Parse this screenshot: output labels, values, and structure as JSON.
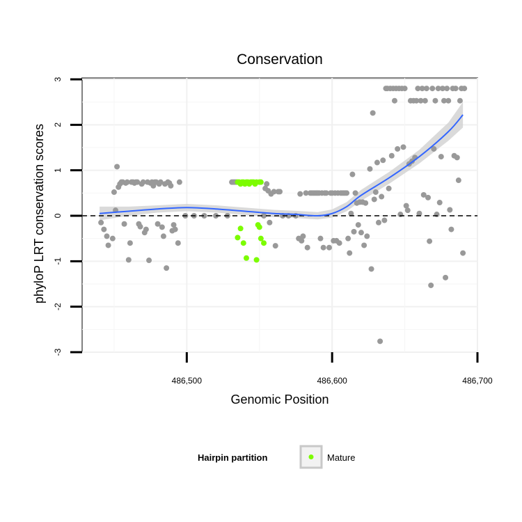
{
  "chart_data": {
    "type": "scatter",
    "title": "Conservation",
    "xlabel": "Genomic Position",
    "ylabel": "phyloP LRT conservation scores",
    "xlim": [
      486428,
      486700
    ],
    "ylim": [
      -3,
      3
    ],
    "x_ticks": [
      486500,
      486600,
      486700
    ],
    "x_tick_labels": [
      "486,500",
      "486,600",
      "486,700"
    ],
    "y_ticks": [
      -3,
      -2,
      -1,
      0,
      1,
      2,
      3
    ],
    "y_tick_labels": [
      "-3",
      "-2",
      "-1",
      "0",
      "1",
      "2",
      "3"
    ],
    "reference_line": {
      "y": 0,
      "style": "dashed"
    },
    "grid": true,
    "legend": {
      "title": "Hairpin partition",
      "entries": [
        {
          "label": "Mature",
          "color": "#7cfc00"
        }
      ],
      "position": "bottom"
    },
    "colors": {
      "other": "#999999",
      "mature": "#7cfc00",
      "smooth": "#3366ff",
      "band": "#d3d3d3"
    },
    "series": [
      {
        "name": "Other",
        "points": [
          [
            486441,
            -0.15
          ],
          [
            486443,
            -0.3
          ],
          [
            486445,
            -0.45
          ],
          [
            486446,
            -0.65
          ],
          [
            486449,
            -0.5
          ],
          [
            486450,
            0.52
          ],
          [
            486451,
            0.12
          ],
          [
            486452,
            1.08
          ],
          [
            486453,
            0.63
          ],
          [
            486454,
            0.7
          ],
          [
            486455,
            0.74
          ],
          [
            486456,
            0.74
          ],
          [
            486457,
            -0.18
          ],
          [
            486458,
            0.72
          ],
          [
            486459,
            0.74
          ],
          [
            486460,
            -0.97
          ],
          [
            486461,
            -0.6
          ],
          [
            486462,
            0.74
          ],
          [
            486463,
            0.74
          ],
          [
            486464,
            0.72
          ],
          [
            486465,
            0.74
          ],
          [
            486466,
            0.74
          ],
          [
            486467,
            -0.18
          ],
          [
            486468,
            -0.24
          ],
          [
            486469,
            0.7
          ],
          [
            486470,
            0.74
          ],
          [
            486471,
            -0.37
          ],
          [
            486472,
            -0.3
          ],
          [
            486473,
            0.74
          ],
          [
            486474,
            -0.98
          ],
          [
            486475,
            0.72
          ],
          [
            486476,
            0.74
          ],
          [
            486477,
            0.66
          ],
          [
            486478,
            0.74
          ],
          [
            486479,
            0.74
          ],
          [
            486480,
            -0.18
          ],
          [
            486481,
            0.7
          ],
          [
            486482,
            0.74
          ],
          [
            486483,
            -0.25
          ],
          [
            486484,
            -0.45
          ],
          [
            486485,
            0.7
          ],
          [
            486486,
            -1.15
          ],
          [
            486487,
            0.74
          ],
          [
            486488,
            0.72
          ],
          [
            486489,
            0.66
          ],
          [
            486490,
            -0.33
          ],
          [
            486491,
            -0.2
          ],
          [
            486492,
            -0.3
          ],
          [
            486494,
            -0.6
          ],
          [
            486495,
            0.74
          ],
          [
            486499,
            0.0
          ],
          [
            486505,
            0.0
          ],
          [
            486512,
            0.0
          ],
          [
            486520,
            0.0
          ],
          [
            486528,
            0.0
          ],
          [
            486531,
            0.74
          ],
          [
            486532,
            0.74
          ],
          [
            486533,
            0.74
          ],
          [
            486534,
            0.74
          ],
          [
            486553,
            0.0
          ],
          [
            486554,
            0.6
          ],
          [
            486555,
            0.7
          ],
          [
            486556,
            0.55
          ],
          [
            486557,
            -0.15
          ],
          [
            486558,
            0.48
          ],
          [
            486560,
            0.53
          ],
          [
            486561,
            -0.66
          ],
          [
            486563,
            0.53
          ],
          [
            486564,
            0.53
          ],
          [
            486566,
            0.0
          ],
          [
            486570,
            0.0
          ],
          [
            486575,
            0.0
          ],
          [
            486577,
            -0.5
          ],
          [
            486578,
            0.48
          ],
          [
            486579,
            -0.55
          ],
          [
            486580,
            -0.45
          ],
          [
            486582,
            0.5
          ],
          [
            486583,
            -0.7
          ],
          [
            486585,
            0.5
          ],
          [
            486586,
            0.5
          ],
          [
            486587,
            0.5
          ],
          [
            486588,
            0.5
          ],
          [
            486589,
            0.5
          ],
          [
            486590,
            0.5
          ],
          [
            486591,
            0.5
          ],
          [
            486592,
            -0.5
          ],
          [
            486593,
            0.5
          ],
          [
            486594,
            -0.7
          ],
          [
            486595,
            0.5
          ],
          [
            486596,
            0.5
          ],
          [
            486598,
            -0.7
          ],
          [
            486599,
            0.5
          ],
          [
            486600,
            0.5
          ],
          [
            486601,
            -0.55
          ],
          [
            486602,
            0.5
          ],
          [
            486603,
            -0.55
          ],
          [
            486604,
            0.5
          ],
          [
            486605,
            -0.6
          ],
          [
            486606,
            0.5
          ],
          [
            486607,
            0.5
          ],
          [
            486608,
            0.5
          ],
          [
            486609,
            0.5
          ],
          [
            486610,
            0.5
          ],
          [
            486611,
            -0.5
          ],
          [
            486612,
            -0.82
          ],
          [
            486613,
            0.05
          ],
          [
            486614,
            0.91
          ],
          [
            486615,
            -0.35
          ],
          [
            486616,
            0.5
          ],
          [
            486617,
            0.28
          ],
          [
            486618,
            -0.2
          ],
          [
            486619,
            0.3
          ],
          [
            486620,
            -0.37
          ],
          [
            486621,
            0.3
          ],
          [
            486622,
            -0.65
          ],
          [
            486623,
            0.28
          ],
          [
            486624,
            -0.45
          ],
          [
            486626,
            1.03
          ],
          [
            486627,
            -1.17
          ],
          [
            486628,
            2.26
          ],
          [
            486629,
            0.36
          ],
          [
            486630,
            0.52
          ],
          [
            486631,
            1.17
          ],
          [
            486632,
            -0.15
          ],
          [
            486633,
            -2.76
          ],
          [
            486634,
            0.42
          ],
          [
            486635,
            1.22
          ],
          [
            486636,
            -0.1
          ],
          [
            486637,
            2.8
          ],
          [
            486638,
            2.8
          ],
          [
            486639,
            0.6
          ],
          [
            486640,
            2.8
          ],
          [
            486641,
            1.32
          ],
          [
            486642,
            2.8
          ],
          [
            486643,
            2.53
          ],
          [
            486644,
            2.8
          ],
          [
            486645,
            1.47
          ],
          [
            486646,
            2.8
          ],
          [
            486647,
            0.03
          ],
          [
            486648,
            2.8
          ],
          [
            486649,
            1.51
          ],
          [
            486650,
            2.8
          ],
          [
            486651,
            0.22
          ],
          [
            486652,
            0.12
          ],
          [
            486653,
            1.14
          ],
          [
            486654,
            2.53
          ],
          [
            486655,
            1.2
          ],
          [
            486656,
            2.53
          ],
          [
            486657,
            1.28
          ],
          [
            486658,
            2.53
          ],
          [
            486659,
            2.8
          ],
          [
            486660,
            0.05
          ],
          [
            486661,
            2.53
          ],
          [
            486662,
            2.8
          ],
          [
            486663,
            0.46
          ],
          [
            486664,
            2.53
          ],
          [
            486665,
            2.8
          ],
          [
            486666,
            0.4
          ],
          [
            486667,
            -0.56
          ],
          [
            486668,
            -1.53
          ],
          [
            486669,
            2.8
          ],
          [
            486670,
            1.47
          ],
          [
            486671,
            2.53
          ],
          [
            486672,
            0.03
          ],
          [
            486673,
            2.8
          ],
          [
            486674,
            0.29
          ],
          [
            486675,
            1.3
          ],
          [
            486676,
            2.8
          ],
          [
            486677,
            2.53
          ],
          [
            486678,
            -1.36
          ],
          [
            486679,
            2.8
          ],
          [
            486680,
            2.53
          ],
          [
            486681,
            0.13
          ],
          [
            486682,
            -0.3
          ],
          [
            486683,
            2.8
          ],
          [
            486684,
            1.32
          ],
          [
            486685,
            2.8
          ],
          [
            486686,
            1.28
          ],
          [
            486687,
            0.78
          ],
          [
            486688,
            2.53
          ],
          [
            486689,
            2.8
          ],
          [
            486690,
            -0.82
          ],
          [
            486691,
            2.8
          ]
        ]
      },
      {
        "name": "Mature",
        "points": [
          [
            486535,
            0.74
          ],
          [
            486536,
            0.74
          ],
          [
            486537,
            0.7
          ],
          [
            486538,
            0.74
          ],
          [
            486539,
            0.74
          ],
          [
            486540,
            0.7
          ],
          [
            486541,
            0.74
          ],
          [
            486542,
            0.74
          ],
          [
            486543,
            0.7
          ],
          [
            486544,
            0.74
          ],
          [
            486545,
            0.74
          ],
          [
            486546,
            0.74
          ],
          [
            486547,
            0.7
          ],
          [
            486548,
            0.74
          ],
          [
            486550,
            0.74
          ],
          [
            486551,
            0.74
          ],
          [
            486535,
            -0.48
          ],
          [
            486537,
            -0.28
          ],
          [
            486539,
            -0.6
          ],
          [
            486541,
            -0.93
          ],
          [
            486548,
            -0.97
          ],
          [
            486549,
            -0.2
          ],
          [
            486550,
            -0.25
          ],
          [
            486551,
            -0.5
          ],
          [
            486553,
            -0.6
          ]
        ]
      },
      {
        "name": "Smooth fit",
        "x": [
          486440,
          486460,
          486480,
          486500,
          486520,
          486540,
          486560,
          486575,
          486590,
          486600,
          486610,
          486620,
          486640,
          486660,
          486680,
          486690
        ],
        "y": [
          0.05,
          0.1,
          0.15,
          0.18,
          0.15,
          0.1,
          0.05,
          0.03,
          0.0,
          0.05,
          0.2,
          0.45,
          0.85,
          1.3,
          1.85,
          2.22
        ],
        "band_half_width": [
          0.15,
          0.1,
          0.08,
          0.08,
          0.08,
          0.08,
          0.08,
          0.08,
          0.08,
          0.09,
          0.1,
          0.12,
          0.13,
          0.15,
          0.2,
          0.28
        ]
      }
    ]
  }
}
